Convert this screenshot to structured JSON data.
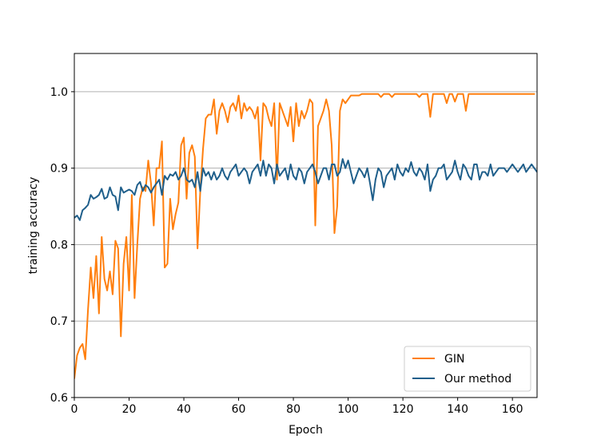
{
  "chart_data": {
    "type": "line",
    "xlabel": "Epoch",
    "ylabel": "training accuracy",
    "xlim": [
      0,
      169
    ],
    "ylim": [
      0.6,
      1.05
    ],
    "xticks": [
      0,
      20,
      40,
      60,
      80,
      100,
      120,
      140,
      160
    ],
    "yticks": [
      0.6,
      0.7,
      0.8,
      0.9,
      1.0
    ],
    "xtick_labels": [
      "0",
      "20",
      "40",
      "60",
      "80",
      "100",
      "120",
      "140",
      "160"
    ],
    "ytick_labels": [
      "0.6",
      "0.7",
      "0.8",
      "0.9",
      "1.0"
    ],
    "grid": "horizontal",
    "legend_position": "lower-right",
    "x_start": 0,
    "x_step": 1,
    "series": [
      {
        "name": "GIN",
        "color": "#ff7f0e",
        "values": [
          0.625,
          0.655,
          0.665,
          0.67,
          0.65,
          0.715,
          0.77,
          0.73,
          0.785,
          0.71,
          0.81,
          0.755,
          0.74,
          0.765,
          0.735,
          0.805,
          0.795,
          0.68,
          0.775,
          0.81,
          0.74,
          0.865,
          0.73,
          0.8,
          0.86,
          0.875,
          0.87,
          0.91,
          0.88,
          0.825,
          0.9,
          0.9,
          0.935,
          0.77,
          0.775,
          0.86,
          0.82,
          0.84,
          0.855,
          0.93,
          0.94,
          0.86,
          0.92,
          0.93,
          0.915,
          0.795,
          0.87,
          0.925,
          0.965,
          0.97,
          0.97,
          0.99,
          0.945,
          0.975,
          0.985,
          0.975,
          0.96,
          0.98,
          0.985,
          0.975,
          0.995,
          0.965,
          0.985,
          0.975,
          0.98,
          0.975,
          0.965,
          0.98,
          0.91,
          0.985,
          0.98,
          0.965,
          0.955,
          0.985,
          0.885,
          0.985,
          0.975,
          0.965,
          0.955,
          0.98,
          0.935,
          0.985,
          0.955,
          0.975,
          0.965,
          0.975,
          0.99,
          0.985,
          0.825,
          0.955,
          0.965,
          0.975,
          0.99,
          0.975,
          0.93,
          0.815,
          0.85,
          0.975,
          0.99,
          0.985,
          0.99,
          0.995,
          0.995,
          0.995,
          0.995,
          0.997,
          0.997,
          0.997,
          0.997,
          0.997,
          0.997,
          0.997,
          0.993,
          0.997,
          0.997,
          0.997,
          0.993,
          0.997,
          0.997,
          0.997,
          0.997,
          0.997,
          0.997,
          0.997,
          0.997,
          0.997,
          0.993,
          0.997,
          0.997,
          0.997,
          0.967,
          0.997,
          0.997,
          0.997,
          0.997,
          0.997,
          0.985,
          0.997,
          0.997,
          0.987,
          0.997,
          0.997,
          0.997,
          0.975,
          0.997,
          0.997,
          0.997,
          0.997,
          0.997,
          0.997,
          0.997,
          0.997,
          0.997,
          0.997,
          0.997,
          0.997,
          0.997,
          0.997,
          0.997,
          0.997,
          0.997,
          0.997,
          0.997,
          0.997,
          0.997,
          0.997,
          0.997,
          0.997,
          0.997
        ]
      },
      {
        "name": "Our method",
        "color": "#1f5f8b",
        "values": [
          0.835,
          0.838,
          0.832,
          0.845,
          0.848,
          0.852,
          0.865,
          0.86,
          0.862,
          0.865,
          0.873,
          0.86,
          0.862,
          0.875,
          0.865,
          0.863,
          0.845,
          0.875,
          0.868,
          0.87,
          0.872,
          0.87,
          0.865,
          0.878,
          0.882,
          0.87,
          0.878,
          0.875,
          0.868,
          0.875,
          0.88,
          0.885,
          0.865,
          0.89,
          0.885,
          0.892,
          0.89,
          0.895,
          0.885,
          0.89,
          0.9,
          0.885,
          0.882,
          0.885,
          0.875,
          0.895,
          0.87,
          0.9,
          0.89,
          0.895,
          0.885,
          0.895,
          0.885,
          0.89,
          0.9,
          0.89,
          0.885,
          0.895,
          0.9,
          0.905,
          0.89,
          0.895,
          0.9,
          0.895,
          0.88,
          0.895,
          0.9,
          0.905,
          0.89,
          0.91,
          0.89,
          0.905,
          0.9,
          0.88,
          0.905,
          0.89,
          0.895,
          0.9,
          0.885,
          0.905,
          0.89,
          0.885,
          0.9,
          0.895,
          0.88,
          0.895,
          0.9,
          0.905,
          0.895,
          0.88,
          0.89,
          0.9,
          0.9,
          0.885,
          0.905,
          0.905,
          0.89,
          0.895,
          0.912,
          0.9,
          0.91,
          0.895,
          0.88,
          0.89,
          0.9,
          0.895,
          0.888,
          0.9,
          0.88,
          0.858,
          0.885,
          0.9,
          0.895,
          0.875,
          0.89,
          0.895,
          0.9,
          0.885,
          0.905,
          0.895,
          0.89,
          0.9,
          0.895,
          0.908,
          0.895,
          0.89,
          0.9,
          0.895,
          0.885,
          0.905,
          0.87,
          0.885,
          0.89,
          0.9,
          0.9,
          0.905,
          0.885,
          0.89,
          0.895,
          0.91,
          0.895,
          0.885,
          0.905,
          0.9,
          0.89,
          0.885,
          0.905,
          0.905,
          0.885,
          0.895,
          0.895,
          0.89,
          0.905,
          0.89,
          0.895,
          0.9,
          0.9,
          0.9,
          0.895,
          0.9,
          0.905,
          0.9,
          0.895,
          0.9,
          0.905,
          0.895,
          0.9,
          0.905,
          0.9,
          0.895,
          0.895,
          0.895,
          0.895
        ]
      }
    ]
  }
}
